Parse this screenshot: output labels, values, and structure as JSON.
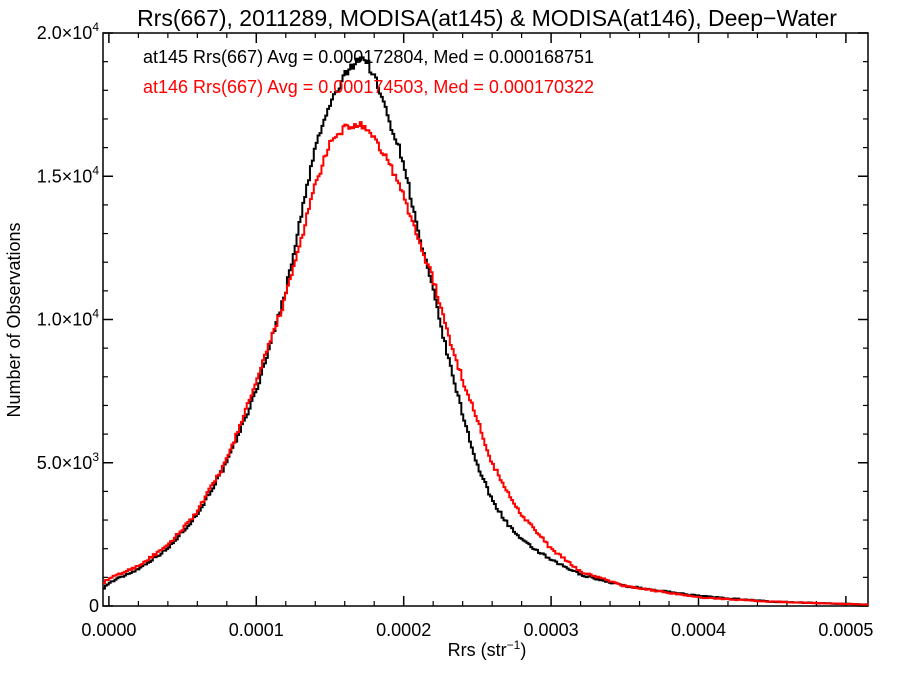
{
  "chart_data": {
    "type": "line",
    "title": "Rrs(667), 2011289, MODISA(at145) & MODISA(at146), Deep−Water",
    "xlabel_base": "Rrs (str",
    "xlabel_sup": "−1",
    "xlabel_end": ")",
    "ylabel": "Number of Observations",
    "xlim": [
      -4e-06,
      0.000515
    ],
    "ylim": [
      0,
      20000
    ],
    "grid": false,
    "x_ticks": [
      {
        "value": 0.0,
        "label": "0.0000"
      },
      {
        "value": 0.0001,
        "label": "0.0001"
      },
      {
        "value": 0.0002,
        "label": "0.0002"
      },
      {
        "value": 0.0003,
        "label": "0.0003"
      },
      {
        "value": 0.0004,
        "label": "0.0004"
      },
      {
        "value": 0.0005,
        "label": "0.0005"
      }
    ],
    "y_ticks": [
      {
        "value": 0,
        "base": "0",
        "exp": ""
      },
      {
        "value": 5000,
        "base": "5.0×10",
        "exp": "3"
      },
      {
        "value": 10000,
        "base": "1.0×10",
        "exp": "4"
      },
      {
        "value": 15000,
        "base": "1.5×10",
        "exp": "4"
      },
      {
        "value": 20000,
        "base": "2.0×10",
        "exp": "4"
      }
    ],
    "annotations": [
      {
        "text": "at145 Rrs(667) Avg = 0.000172804, Med = 0.000168751",
        "color": "#000000"
      },
      {
        "text": "at146 Rrs(667) Avg = 0.000174503, Med = 0.000170322",
        "color": "#ff0000"
      }
    ],
    "series": [
      {
        "color": "#000000",
        "x": [
          -4e-06,
          0.0,
          2e-05,
          4e-05,
          6e-05,
          8e-05,
          0.0001,
          0.00012,
          0.00013,
          0.00014,
          0.00015,
          0.00016,
          0.00017,
          0.000175,
          0.00018,
          0.00019,
          0.0002,
          0.00021,
          0.00022,
          0.00023,
          0.00024,
          0.00025,
          0.00026,
          0.00027,
          0.00028,
          0.0003,
          0.00032,
          0.00035,
          0.0004,
          0.00045,
          0.000515
        ],
        "y": [
          600,
          800,
          1300,
          2000,
          3200,
          5000,
          7500,
          11000,
          13500,
          16000,
          17500,
          18500,
          19200,
          19000,
          18500,
          17000,
          15500,
          13000,
          11000,
          8700,
          6700,
          4900,
          3700,
          2900,
          2300,
          1600,
          1100,
          700,
          350,
          150,
          50
        ]
      },
      {
        "color": "#ff0000",
        "x": [
          -4e-06,
          0.0,
          2e-05,
          4e-05,
          6e-05,
          8e-05,
          0.0001,
          0.00012,
          0.00013,
          0.00014,
          0.00015,
          0.00016,
          0.00017,
          0.00018,
          0.00019,
          0.0002,
          0.00021,
          0.00022,
          0.00023,
          0.00024,
          0.00025,
          0.00026,
          0.00027,
          0.00028,
          0.0003,
          0.00032,
          0.00035,
          0.0004,
          0.00045,
          0.000515
        ],
        "y": [
          800,
          950,
          1400,
          2100,
          3300,
          5100,
          7800,
          10800,
          12700,
          14700,
          16100,
          16700,
          16800,
          16300,
          15500,
          14300,
          12800,
          11400,
          9500,
          7900,
          6500,
          5000,
          4000,
          3200,
          2000,
          1200,
          700,
          300,
          150,
          50
        ]
      }
    ]
  }
}
